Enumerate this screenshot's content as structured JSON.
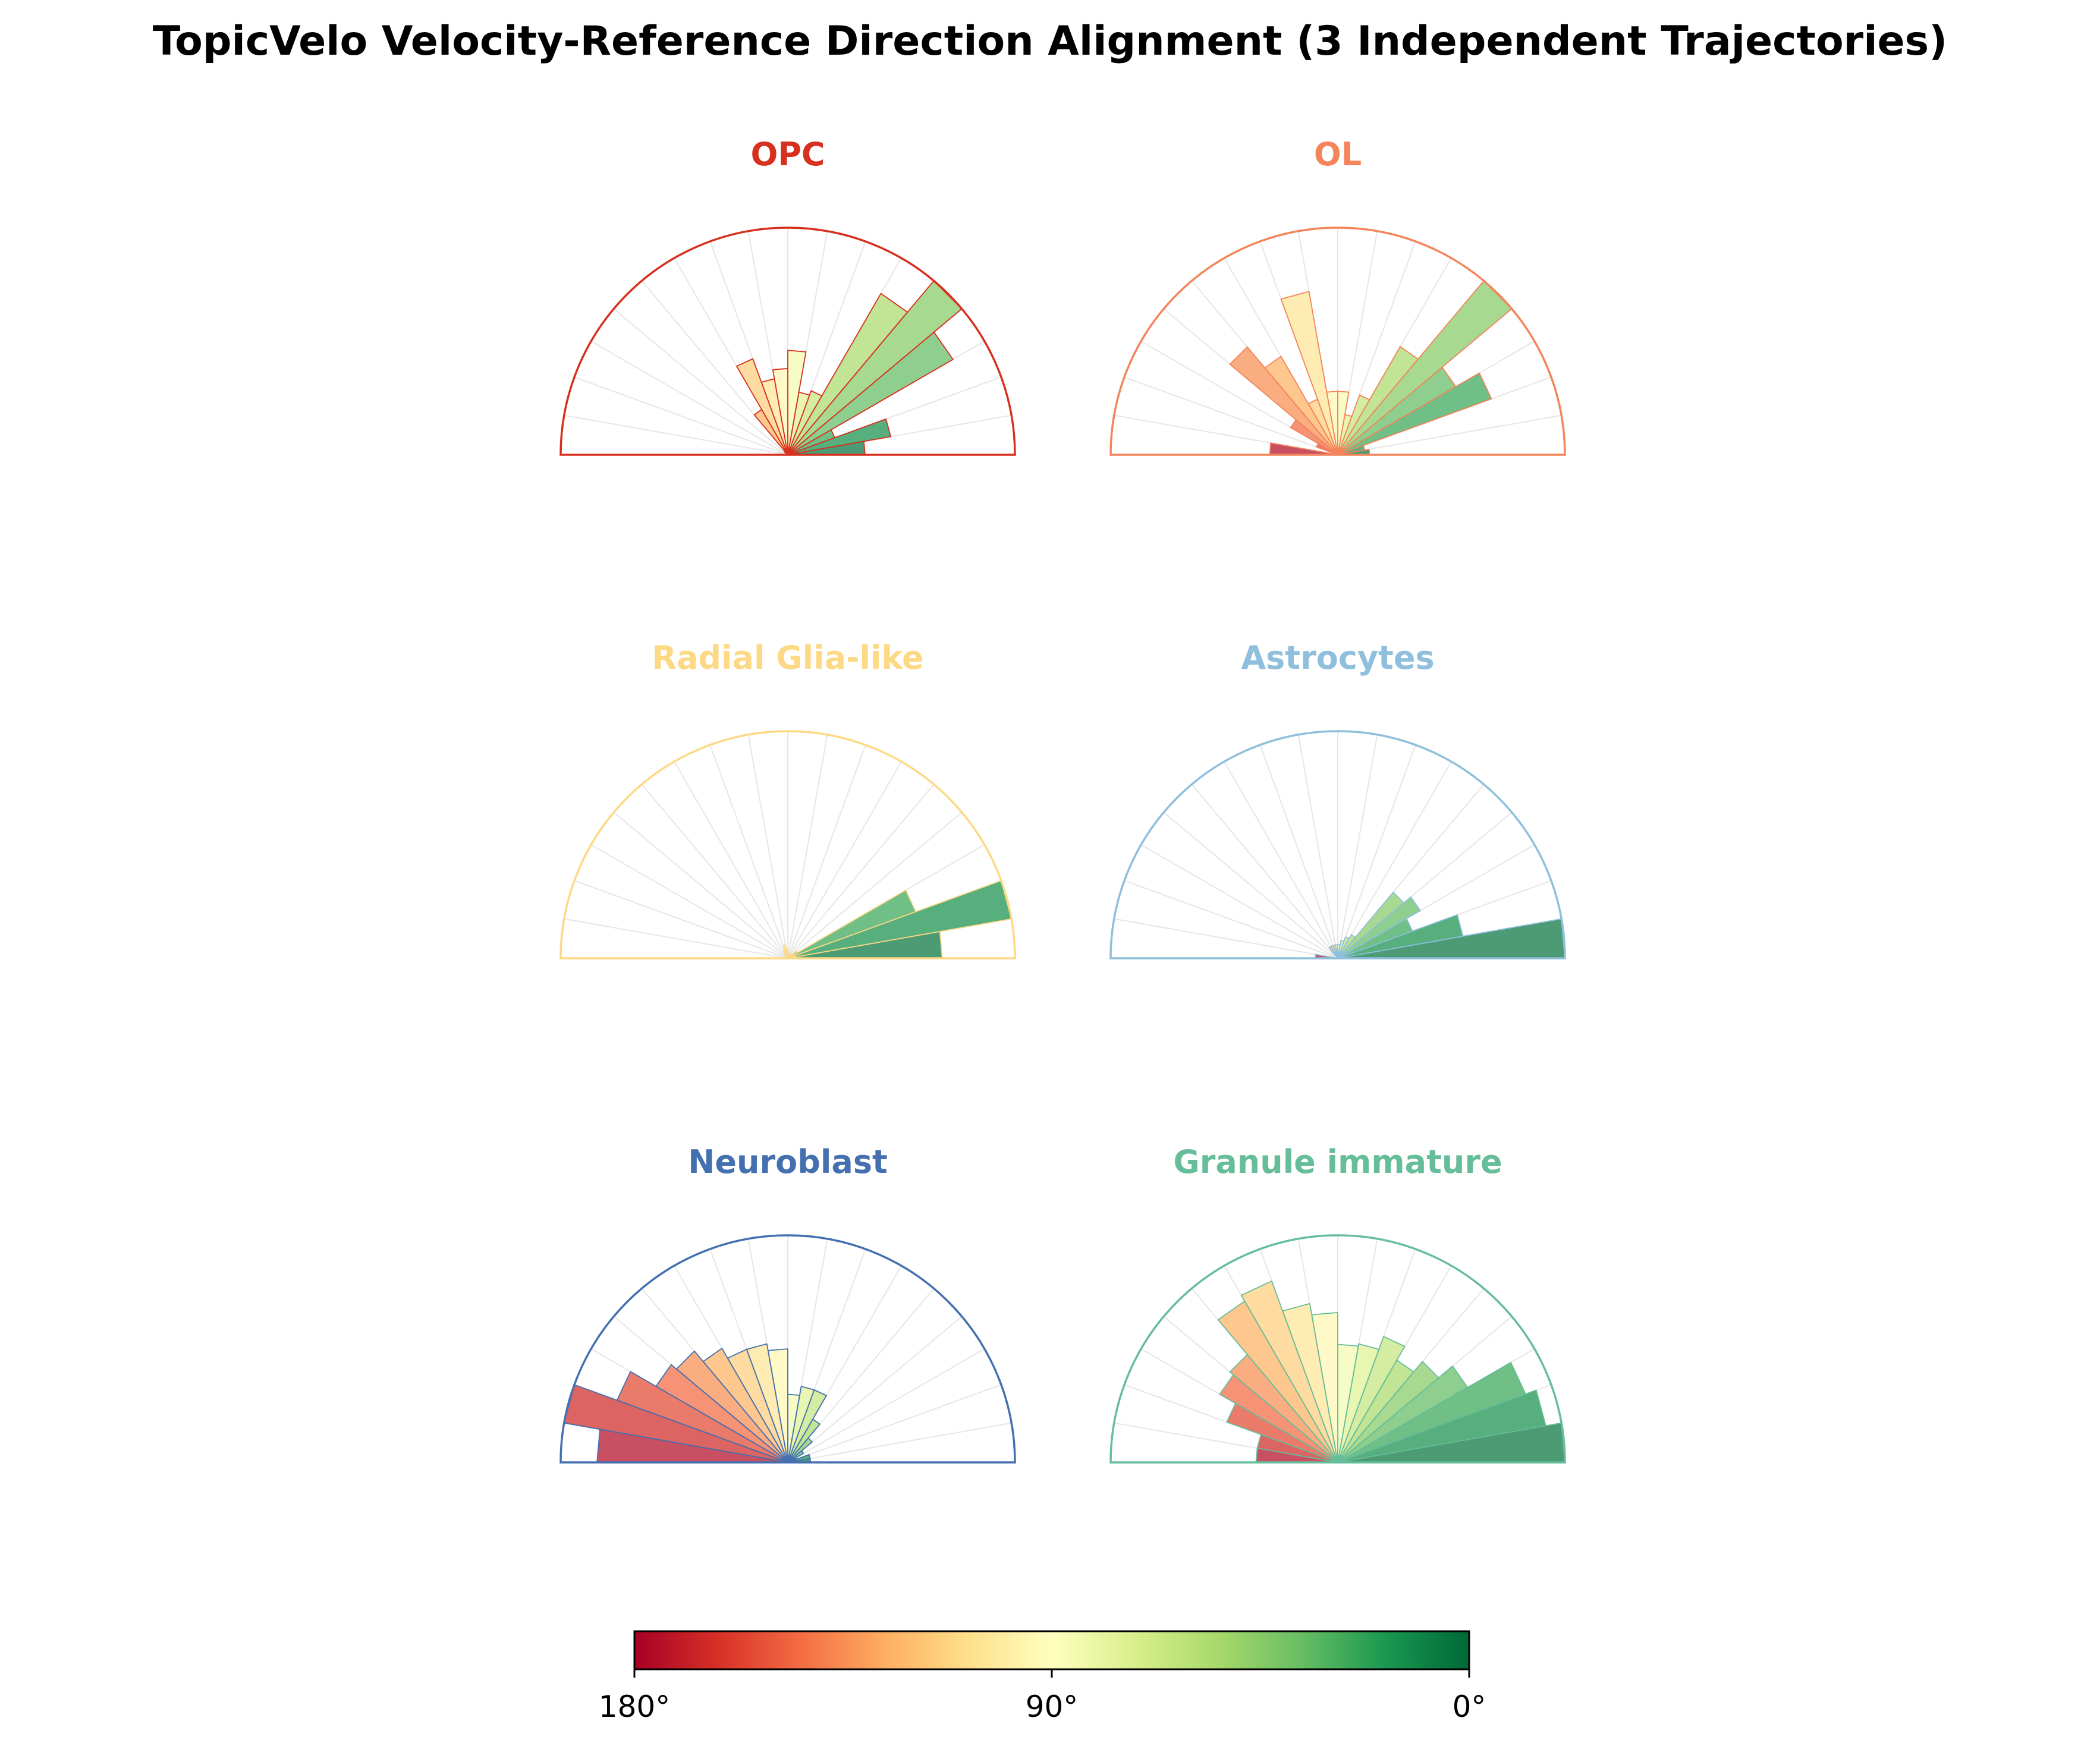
{
  "figure": {
    "title": "TopicVelo Velocity-Reference Direction Alignment (3 Independent Trajectories)",
    "colorbar": {
      "ticks": [
        "180°",
        "90°",
        "0°"
      ],
      "colormap": "RdYlGn",
      "range": [
        180,
        0
      ]
    }
  },
  "chart_data": [
    {
      "type": "polar-bar",
      "title": "OPC",
      "title_color": "#d7301f",
      "theta_unit": "degrees (angle between velocity and reference direction; 0° = right, 180° = left)",
      "bin_width": 10,
      "bins": [
        5,
        15,
        25,
        35,
        45,
        55,
        65,
        75,
        85,
        95,
        105,
        115,
        125,
        135,
        145,
        155,
        165,
        175
      ],
      "values": [
        0.34,
        0.46,
        0.22,
        0.84,
        1.0,
        0.82,
        0.3,
        0.28,
        0.46,
        0.38,
        0.34,
        0.45,
        0.23,
        0.02,
        0.0,
        0.0,
        0.0,
        0.0
      ],
      "rmax": 1.0
    },
    {
      "type": "polar-bar",
      "title": "OL",
      "title_color": "#f4845a",
      "theta_unit": "degrees",
      "bin_width": 10,
      "bins": [
        5,
        15,
        25,
        35,
        45,
        55,
        65,
        75,
        85,
        95,
        105,
        115,
        125,
        135,
        145,
        155,
        165,
        175
      ],
      "values": [
        0.14,
        0.12,
        0.72,
        0.6,
        1.0,
        0.55,
        0.28,
        0.18,
        0.28,
        0.28,
        0.73,
        0.26,
        0.5,
        0.62,
        0.24,
        0.1,
        0.0,
        0.3
      ],
      "rmax": 1.0
    },
    {
      "type": "polar-bar",
      "title": "Radial Glia-like",
      "title_color": "#fdd985",
      "theta_unit": "degrees",
      "bin_width": 10,
      "bins": [
        5,
        15,
        25,
        35,
        45,
        55,
        65,
        75,
        85,
        95,
        105,
        115,
        125,
        135,
        145,
        155,
        165,
        175
      ],
      "values": [
        0.68,
        1.0,
        0.6,
        0.05,
        0.02,
        0.02,
        0.02,
        0.02,
        0.02,
        0.04,
        0.06,
        0.04,
        0.02,
        0.0,
        0.0,
        0.0,
        0.0,
        0.0
      ],
      "rmax": 1.0
    },
    {
      "type": "polar-bar",
      "title": "Astrocytes",
      "title_color": "#8fbfdc",
      "theta_unit": "degrees",
      "bin_width": 10,
      "bins": [
        5,
        15,
        25,
        35,
        45,
        55,
        65,
        75,
        85,
        95,
        105,
        115,
        125,
        135,
        145,
        155,
        165,
        175
      ],
      "values": [
        1.0,
        0.56,
        0.35,
        0.42,
        0.38,
        0.12,
        0.1,
        0.08,
        0.06,
        0.06,
        0.06,
        0.06,
        0.06,
        0.0,
        0.0,
        0.0,
        0.0,
        0.1
      ],
      "rmax": 1.0
    },
    {
      "type": "polar-bar",
      "title": "Neuroblast",
      "title_color": "#4470b0",
      "theta_unit": "degrees",
      "bin_width": 10,
      "bins": [
        5,
        15,
        25,
        35,
        45,
        55,
        65,
        75,
        85,
        95,
        105,
        115,
        125,
        135,
        145,
        155,
        165,
        175
      ],
      "values": [
        0.1,
        0.1,
        0.04,
        0.08,
        0.14,
        0.22,
        0.34,
        0.34,
        0.3,
        0.5,
        0.53,
        0.53,
        0.58,
        0.64,
        0.67,
        0.8,
        1.0,
        0.84
      ],
      "rmax": 1.0
    },
    {
      "type": "polar-bar",
      "title": "Granule immature",
      "title_color": "#66bd9a",
      "theta_unit": "degrees",
      "bin_width": 10,
      "bins": [
        5,
        15,
        25,
        35,
        45,
        55,
        65,
        75,
        85,
        95,
        105,
        115,
        125,
        135,
        145,
        155,
        165,
        175
      ],
      "values": [
        1.0,
        0.93,
        0.88,
        0.66,
        0.58,
        0.52,
        0.59,
        0.53,
        0.52,
        0.66,
        0.71,
        0.85,
        0.82,
        0.62,
        0.6,
        0.52,
        0.36,
        0.36
      ],
      "rmax": 1.0
    }
  ]
}
